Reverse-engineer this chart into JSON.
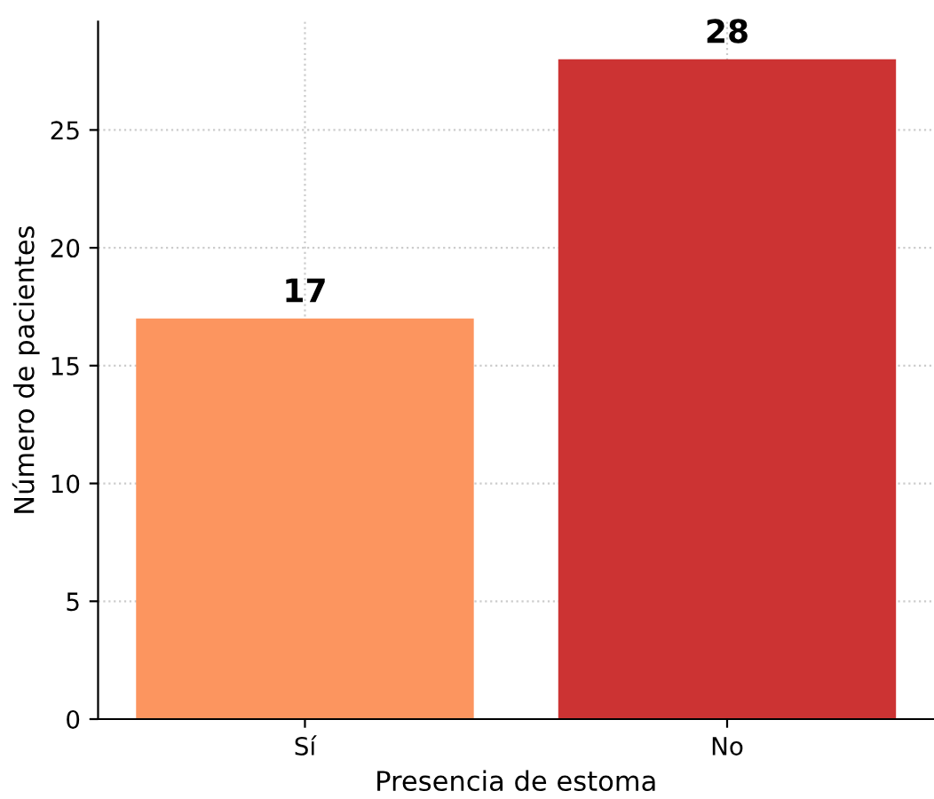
{
  "chart_data": {
    "type": "bar",
    "xlabel": "Presencia de estoma",
    "ylabel": "Número de pacientes",
    "categories": [
      "Sí",
      "No"
    ],
    "values": [
      17,
      28
    ],
    "colors": [
      "#fc955f",
      "#cc3333"
    ],
    "ylim": [
      0,
      29.6
    ],
    "yticks": [
      0,
      5,
      10,
      15,
      20,
      25
    ],
    "grid": true,
    "data_labels": true
  }
}
